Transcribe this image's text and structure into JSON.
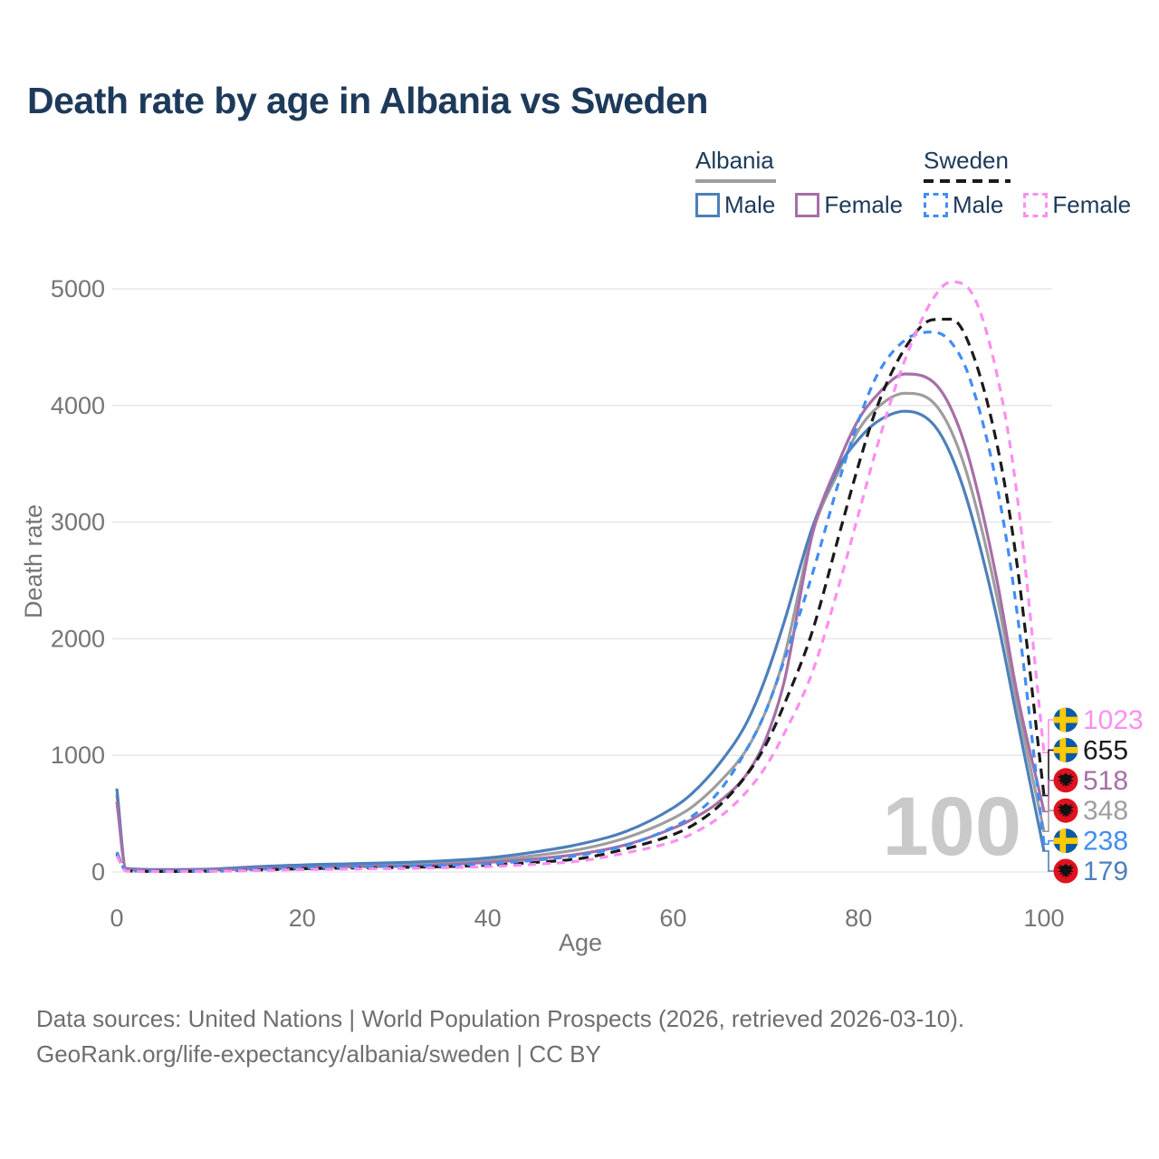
{
  "title": "Death rate by age in Albania vs Sweden",
  "legend": {
    "albania": {
      "title": "Albania",
      "male_label": "Male",
      "female_label": "Female",
      "line_color": "#9e9e9e",
      "male_color": "#4d7fba",
      "female_color": "#a76fa7",
      "style": "solid"
    },
    "sweden": {
      "title": "Sweden",
      "male_label": "Male",
      "female_label": "Female",
      "line_color": "#1a1a1a",
      "male_color": "#418df2",
      "female_color": "#fb8ff0",
      "style": "dashed"
    }
  },
  "age_indicator": "100",
  "footer": {
    "line1": "Data sources: United Nations | World Population Prospects (2026, retrieved 2026-03-10).",
    "line2": "GeoRank.org/life-expectancy/albania/sweden | CC BY"
  },
  "chart_data": {
    "type": "line",
    "title": "Death rate by age in Albania vs Sweden",
    "xlabel": "Age",
    "ylabel": "Death rate",
    "xlim": [
      0,
      100
    ],
    "ylim": [
      0,
      5000
    ],
    "xticks": [
      0,
      20,
      40,
      60,
      80,
      100
    ],
    "yticks": [
      0,
      1000,
      2000,
      3000,
      4000,
      5000
    ],
    "grid": "horizontal",
    "legend_position": "top-right",
    "x": [
      0,
      1,
      5,
      10,
      15,
      20,
      25,
      30,
      35,
      40,
      45,
      50,
      55,
      60,
      62,
      65,
      68,
      70,
      72,
      75,
      78,
      80,
      82,
      85,
      88,
      90,
      92,
      95,
      97,
      100
    ],
    "series": [
      {
        "id": "albania-total",
        "name": "Albania (both sexes)",
        "country": "albania",
        "sex": "total",
        "color": "#9e9e9e",
        "dash": "solid",
        "end_label": "348",
        "values": [
          660,
          28,
          18,
          20,
          35,
          48,
          56,
          64,
          78,
          100,
          140,
          195,
          295,
          460,
          555,
          770,
          1060,
          1380,
          1850,
          2900,
          3460,
          3790,
          3980,
          4105,
          4030,
          3780,
          3330,
          2330,
          1480,
          348
        ]
      },
      {
        "id": "albania-male",
        "name": "Albania Male",
        "country": "albania",
        "sex": "male",
        "color": "#4d7fba",
        "dash": "solid",
        "end_label": "179",
        "values": [
          715,
          30,
          20,
          24,
          45,
          60,
          70,
          80,
          95,
          120,
          170,
          240,
          350,
          550,
          670,
          930,
          1290,
          1670,
          2150,
          2950,
          3490,
          3710,
          3860,
          3950,
          3845,
          3570,
          3110,
          2150,
          1350,
          179
        ]
      },
      {
        "id": "albania-female",
        "name": "Albania Female",
        "country": "albania",
        "sex": "female",
        "color": "#a76fa7",
        "dash": "solid",
        "end_label": "518",
        "values": [
          600,
          25,
          15,
          17,
          28,
          38,
          44,
          50,
          62,
          82,
          112,
          155,
          235,
          375,
          450,
          605,
          845,
          1140,
          1640,
          2890,
          3540,
          3880,
          4090,
          4270,
          4205,
          3970,
          3520,
          2470,
          1570,
          518
        ]
      },
      {
        "id": "sweden-total",
        "name": "Sweden (both sexes)",
        "country": "sweden",
        "sex": "total",
        "color": "#1a1a1a",
        "dash": "dashed",
        "end_label": "655",
        "values": [
          155,
          9,
          5,
          7,
          16,
          28,
          33,
          38,
          45,
          58,
          82,
          115,
          200,
          320,
          395,
          570,
          840,
          1090,
          1440,
          2060,
          2920,
          3490,
          3990,
          4490,
          4735,
          4740,
          4510,
          3640,
          2690,
          655
        ]
      },
      {
        "id": "sweden-male",
        "name": "Sweden Male",
        "country": "sweden",
        "sex": "male",
        "color": "#418df2",
        "dash": "dashed",
        "end_label": "238",
        "values": [
          170,
          10,
          6,
          8,
          20,
          35,
          42,
          48,
          56,
          70,
          100,
          145,
          230,
          385,
          475,
          695,
          1060,
          1380,
          1820,
          2550,
          3380,
          3870,
          4260,
          4560,
          4630,
          4540,
          4230,
          3280,
          2280,
          238
        ]
      },
      {
        "id": "sweden-female",
        "name": "Sweden Female",
        "country": "sweden",
        "sex": "female",
        "color": "#fb8ff0",
        "dash": "dashed",
        "end_label": "1023",
        "values": [
          140,
          8,
          4,
          6,
          12,
          20,
          25,
          29,
          36,
          46,
          65,
          95,
          165,
          260,
          325,
          470,
          695,
          905,
          1190,
          1710,
          2490,
          3070,
          3650,
          4390,
          4910,
          5060,
          4990,
          4240,
          3290,
          1023
        ]
      }
    ],
    "flag_colors": {
      "sweden_blue": "#0b5aa5",
      "sweden_yellow": "#fecb02",
      "albania_red": "#e0121f",
      "albania_eagle": "#111111"
    }
  }
}
